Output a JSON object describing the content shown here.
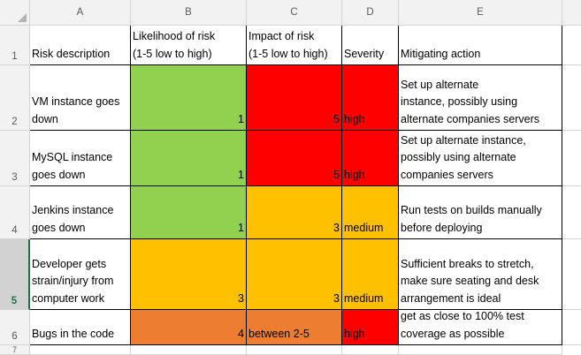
{
  "columns": [
    "A",
    "B",
    "C",
    "D",
    "E"
  ],
  "rows": [
    "1",
    "2",
    "3",
    "4",
    "5",
    "6",
    "7"
  ],
  "selected_row": "5",
  "header_row": {
    "a": "Risk description",
    "b": "Likelihood of risk\n(1-5 low to high)",
    "c": "Impact of risk\n(1-5 low to high)",
    "d": "Severity",
    "e": "Mitigating action"
  },
  "risks": [
    {
      "description": "VM instance goes\ndown",
      "likelihood": "1",
      "impact": "5",
      "severity": "high",
      "mitigation": "Set up alternate\ninstance, possibly using\nalternate companies servers"
    },
    {
      "description": "MySQL instance\ngoes down",
      "likelihood": "1",
      "impact": "5",
      "severity": "high",
      "mitigation": "Set up alternate instance,\npossibly using alternate\ncompanies servers"
    },
    {
      "description": "Jenkins instance\ngoes down",
      "likelihood": "1",
      "impact": "3",
      "severity": "medium",
      "mitigation": "Run tests on builds manually\nbefore deploying"
    },
    {
      "description": "Developer gets\nstrain/injury from\ncomputer work",
      "likelihood": "3",
      "impact": "3",
      "severity": "medium",
      "mitigation": "Sufficient breaks to stretch,\nmake sure seating and desk\narrangement is ideal"
    },
    {
      "description": "Bugs in the code",
      "likelihood": "4",
      "impact": "between 2-5",
      "severity": "high",
      "mitigation": "get as close to 100% test\ncoverage as possible"
    }
  ],
  "colors": {
    "green": "#92d050",
    "red": "#ff0000",
    "amber": "#ffc000",
    "orange": "#ed7d31"
  },
  "icons": {
    "select_all": "select-all-triangle-icon"
  }
}
